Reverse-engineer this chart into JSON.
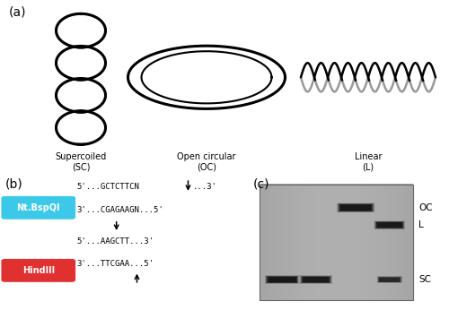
{
  "panel_a_label": "(a)",
  "panel_b_label": "(b)",
  "panel_c_label": "(c)",
  "supercoiled_label": "Supercoiled\n(SC)",
  "open_circular_label": "Open circular\n(OC)",
  "linear_label": "Linear\n(L)",
  "ntbspqi_label": "Nt.BspQI",
  "hindiii_label": "HindIII",
  "ntbspqi_color": "#3CC8E8",
  "hindiii_color": "#E03030",
  "gel_bg_color": "#ADADAD",
  "gel_band_color": "#222222",
  "font_color": "#000000",
  "bg_color": "#FFFFFF",
  "label_fontsize": 10,
  "seq_fontsize": 6.5,
  "structure_label_fontsize": 7
}
